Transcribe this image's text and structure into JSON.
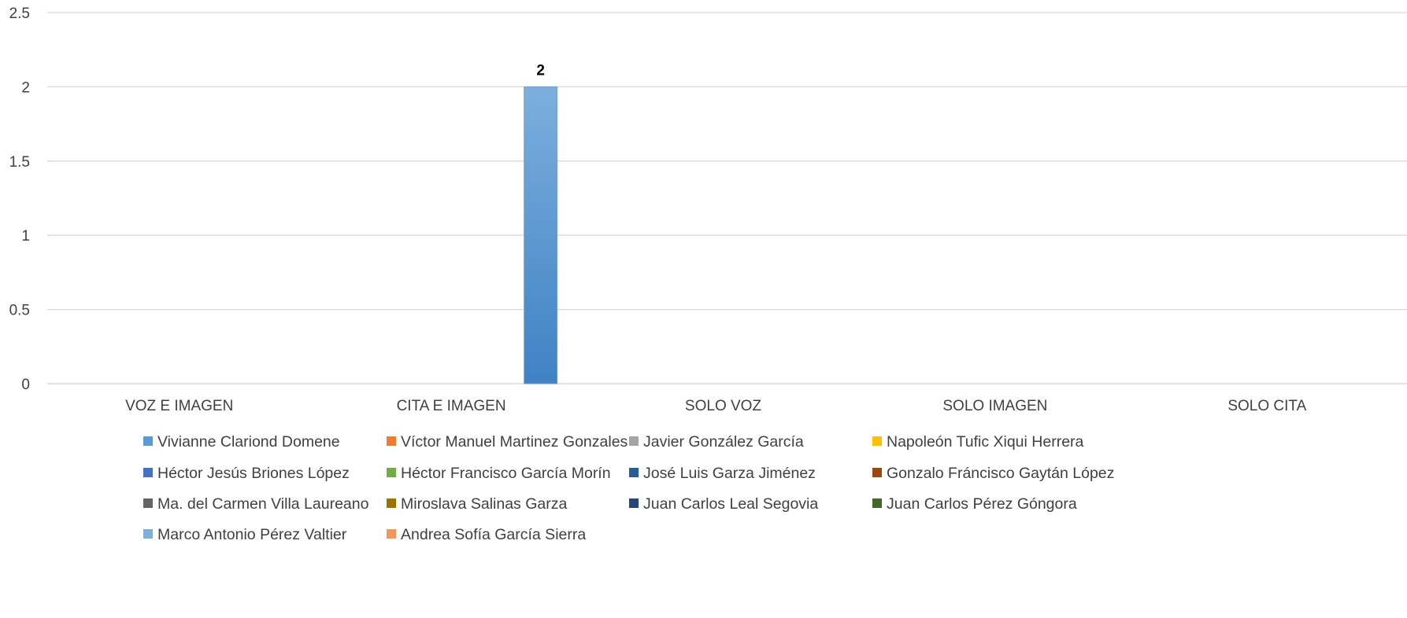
{
  "chart_data": {
    "type": "bar",
    "title": "",
    "xlabel": "",
    "ylabel": "",
    "categories": [
      "VOZ E IMAGEN",
      "CITA E IMAGEN",
      "SOLO VOZ",
      "SOLO IMAGEN",
      "SOLO CITA"
    ],
    "ylim": [
      0,
      2.5
    ],
    "yticks": [
      "0",
      "0.5",
      "1",
      "1.5",
      "2",
      "2.5"
    ],
    "grid": true,
    "legend_position": "bottom",
    "series": [
      {
        "name": "Vivianne Clariond Domene",
        "color": "#5B9BD5",
        "values": [
          0,
          0,
          0,
          0,
          0
        ]
      },
      {
        "name": "Víctor Manuel Martinez Gonzales",
        "color": "#ED7D31",
        "values": [
          0,
          0,
          0,
          0,
          0
        ]
      },
      {
        "name": "Javier González García",
        "color": "#A5A5A5",
        "values": [
          0,
          0,
          0,
          0,
          0
        ]
      },
      {
        "name": "Napoleón Tufic Xiqui Herrera",
        "color": "#FFC000",
        "values": [
          0,
          0,
          0,
          0,
          0
        ]
      },
      {
        "name": "Héctor Jesús Briones López",
        "color": "#4472C4",
        "values": [
          0,
          0,
          0,
          0,
          0
        ]
      },
      {
        "name": "Héctor Francisco García Morín",
        "color": "#70AD47",
        "values": [
          0,
          0,
          0,
          0,
          0
        ]
      },
      {
        "name": "José Luis Garza Jiménez",
        "color": "#255E91",
        "values": [
          0,
          0,
          0,
          0,
          0
        ]
      },
      {
        "name": "Gonzalo Fráncisco Gaytán López",
        "color": "#9E480E",
        "values": [
          0,
          0,
          0,
          0,
          0
        ]
      },
      {
        "name": "Ma. del Carmen Villa Laureano",
        "color": "#636363",
        "values": [
          0,
          0,
          0,
          0,
          0
        ]
      },
      {
        "name": "Miroslava Salinas Garza",
        "color": "#997300",
        "values": [
          0,
          0,
          0,
          0,
          0
        ]
      },
      {
        "name": "Juan Carlos Leal Segovia",
        "color": "#264478",
        "values": [
          0,
          0,
          0,
          0,
          0
        ]
      },
      {
        "name": "Juan Carlos Pérez Góngora",
        "color": "#43682B",
        "values": [
          0,
          0,
          0,
          0,
          0
        ]
      },
      {
        "name": "Marco Antonio Pérez Valtier",
        "color": "#7CAFDD",
        "values": [
          0,
          2,
          0,
          0,
          0
        ]
      },
      {
        "name": "Andrea Sofía García Sierra",
        "color": "#F1975A",
        "values": [
          0,
          0,
          0,
          0,
          0
        ]
      }
    ],
    "data_labels": [
      {
        "series": "Marco Antonio Pérez Valtier",
        "category": "CITA E IMAGEN",
        "text": "2"
      }
    ]
  }
}
